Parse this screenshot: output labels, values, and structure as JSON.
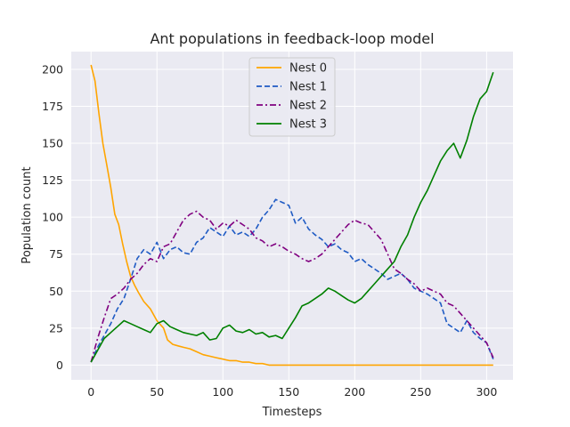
{
  "chart_data": {
    "type": "line",
    "title": "Ant populations in feedback-loop model",
    "xlabel": "Timesteps",
    "ylabel": "Population count",
    "xlim": [
      -15,
      320
    ],
    "ylim": [
      -10,
      212
    ],
    "xticks": [
      0,
      50,
      100,
      150,
      200,
      250,
      300
    ],
    "yticks": [
      0,
      25,
      50,
      75,
      100,
      125,
      150,
      175,
      200
    ],
    "grid": true,
    "legend_position": "top-center",
    "series": [
      {
        "name": "Nest 0",
        "color": "#ffa500",
        "dash": "solid",
        "x": [
          0,
          3,
          6,
          9,
          12,
          15,
          18,
          21,
          24,
          27,
          30,
          33,
          36,
          40,
          45,
          50,
          55,
          58,
          62,
          66,
          70,
          75,
          80,
          85,
          90,
          95,
          100,
          105,
          110,
          115,
          120,
          125,
          130,
          135,
          140,
          150,
          200,
          250,
          305
        ],
        "y": [
          203,
          192,
          170,
          150,
          135,
          120,
          102,
          95,
          82,
          70,
          60,
          54,
          49,
          43,
          38,
          30,
          25,
          17,
          14,
          13,
          12,
          11,
          9,
          7,
          6,
          5,
          4,
          3,
          3,
          2,
          2,
          1,
          1,
          0,
          0,
          0,
          0,
          0,
          0
        ]
      },
      {
        "name": "Nest 1",
        "color": "#1f5bc4",
        "dash": "dashed",
        "x": [
          0,
          5,
          10,
          15,
          20,
          25,
          30,
          35,
          40,
          45,
          50,
          55,
          60,
          65,
          70,
          75,
          80,
          85,
          90,
          95,
          100,
          105,
          110,
          115,
          120,
          125,
          130,
          135,
          140,
          145,
          150,
          155,
          160,
          165,
          170,
          175,
          180,
          185,
          190,
          195,
          200,
          205,
          210,
          215,
          220,
          225,
          230,
          235,
          240,
          245,
          250,
          255,
          260,
          265,
          270,
          275,
          280,
          285,
          290,
          295,
          300,
          305
        ],
        "y": [
          2,
          12,
          20,
          28,
          38,
          45,
          58,
          72,
          78,
          75,
          83,
          72,
          78,
          80,
          76,
          75,
          83,
          86,
          93,
          90,
          87,
          94,
          88,
          90,
          87,
          92,
          100,
          105,
          112,
          110,
          108,
          96,
          100,
          92,
          88,
          85,
          80,
          82,
          78,
          76,
          70,
          72,
          68,
          65,
          62,
          58,
          60,
          62,
          58,
          52,
          50,
          48,
          45,
          42,
          28,
          25,
          22,
          30,
          22,
          18,
          15,
          4
        ]
      },
      {
        "name": "Nest 2",
        "color": "#800080",
        "dash": "dashdot",
        "x": [
          0,
          5,
          10,
          15,
          20,
          25,
          30,
          35,
          40,
          45,
          50,
          55,
          60,
          65,
          70,
          75,
          80,
          85,
          90,
          95,
          100,
          105,
          110,
          115,
          120,
          125,
          130,
          135,
          140,
          145,
          150,
          155,
          160,
          165,
          170,
          175,
          180,
          185,
          190,
          195,
          200,
          205,
          210,
          215,
          220,
          225,
          230,
          235,
          240,
          245,
          250,
          255,
          260,
          265,
          270,
          275,
          280,
          285,
          290,
          295,
          300,
          305
        ],
        "y": [
          2,
          18,
          32,
          45,
          48,
          52,
          58,
          62,
          68,
          72,
          70,
          80,
          82,
          90,
          98,
          102,
          104,
          100,
          98,
          92,
          96,
          94,
          98,
          95,
          92,
          86,
          84,
          80,
          82,
          80,
          77,
          75,
          72,
          70,
          72,
          75,
          80,
          85,
          90,
          95,
          98,
          96,
          95,
          90,
          85,
          75,
          65,
          62,
          58,
          55,
          50,
          52,
          50,
          48,
          42,
          40,
          35,
          30,
          25,
          20,
          15,
          5
        ]
      },
      {
        "name": "Nest 3",
        "color": "#008000",
        "dash": "solid",
        "x": [
          0,
          5,
          10,
          15,
          20,
          25,
          30,
          35,
          40,
          45,
          50,
          55,
          60,
          65,
          70,
          75,
          80,
          85,
          90,
          95,
          100,
          105,
          110,
          115,
          120,
          125,
          130,
          135,
          140,
          145,
          150,
          155,
          160,
          165,
          170,
          175,
          180,
          185,
          190,
          195,
          200,
          205,
          210,
          215,
          220,
          225,
          230,
          235,
          240,
          245,
          250,
          255,
          260,
          265,
          270,
          275,
          280,
          285,
          290,
          295,
          300,
          305
        ],
        "y": [
          2,
          10,
          18,
          22,
          26,
          30,
          28,
          26,
          24,
          22,
          28,
          30,
          26,
          24,
          22,
          21,
          20,
          22,
          17,
          18,
          25,
          27,
          23,
          22,
          24,
          21,
          22,
          19,
          20,
          18,
          25,
          32,
          40,
          42,
          45,
          48,
          52,
          50,
          47,
          44,
          42,
          45,
          50,
          55,
          60,
          65,
          70,
          80,
          88,
          100,
          110,
          118,
          128,
          138,
          145,
          150,
          140,
          152,
          168,
          180,
          185,
          198
        ]
      }
    ]
  }
}
